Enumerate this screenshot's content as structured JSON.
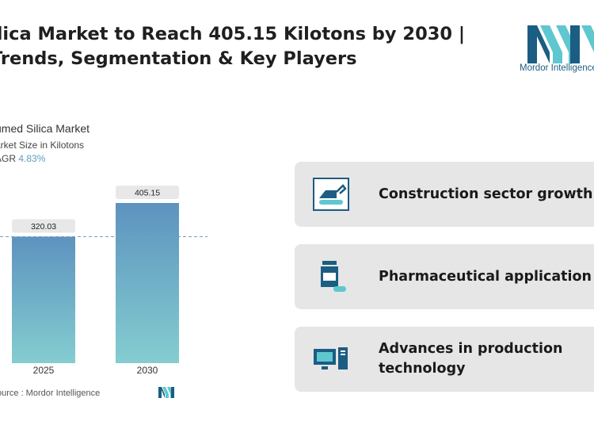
{
  "header": {
    "title_line1": "ilica Market to Reach 405.15 Kilotons by 2030 |",
    "title_line2": "Trends, Segmentation & Key Players"
  },
  "brand": {
    "name": "Mordor Intelligence",
    "colors": {
      "teal": "#5fc7cf",
      "navy": "#1b5d83"
    }
  },
  "chart_data": {
    "type": "bar",
    "title": "umed Silica Market",
    "subtitle": "arket Size in Kilotons",
    "cagr_label": "AGR",
    "cagr_value": "4.83%",
    "categories": [
      "2025",
      "2030"
    ],
    "values": [
      320.03,
      405.15
    ],
    "value_labels": [
      "320.03",
      "405.15"
    ],
    "reference_line": 320.03,
    "ylim": [
      0,
      405.15
    ],
    "colors": {
      "bar_top": "#5d93bf",
      "bar_bottom": "#84cdd0",
      "label_bg": "#e8e8e8"
    }
  },
  "footer": {
    "source": "ource :  Mordor Intelligence"
  },
  "drivers": [
    {
      "label": "Construction sector growth",
      "icon": "excavator-icon"
    },
    {
      "label": "Pharmaceutical application",
      "icon": "medicine-bottle-icon"
    },
    {
      "label_line1": "Advances in production",
      "label_line2": "technology",
      "icon": "computer-icon"
    }
  ]
}
